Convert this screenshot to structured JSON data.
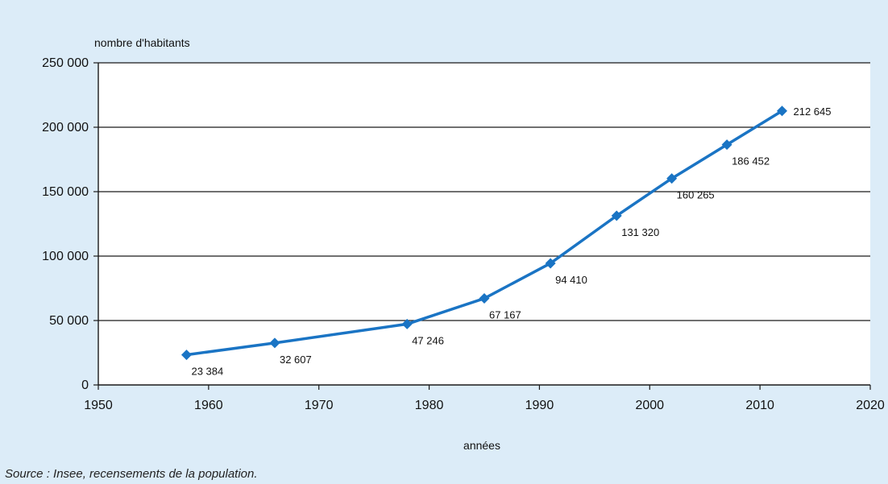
{
  "chart_data": {
    "type": "line",
    "title": "",
    "ylabel": "nombre d'habitants",
    "xlabel": "années",
    "xlim": [
      1950,
      2020
    ],
    "ylim": [
      0,
      250000
    ],
    "x_ticks": [
      1950,
      1960,
      1970,
      1980,
      1990,
      2000,
      2010,
      2020
    ],
    "x_tick_labels": [
      "1950",
      "1960",
      "1970",
      "1980",
      "1990",
      "2000",
      "2010",
      "2020"
    ],
    "y_ticks": [
      0,
      50000,
      100000,
      150000,
      200000,
      250000
    ],
    "y_tick_labels": [
      "0",
      "50 000",
      "100 000",
      "150 000",
      "200 000",
      "250 000"
    ],
    "grid": "horizontal",
    "series": [
      {
        "x": [
          1958,
          1966,
          1978,
          1985,
          1991,
          1997,
          2002,
          2007,
          2012
        ],
        "values": [
          23384,
          32607,
          47246,
          67167,
          94410,
          131320,
          160265,
          186452,
          212645
        ],
        "labels": [
          "23 384",
          "32 607",
          "47 246",
          "67 167",
          "94 410",
          "131 320",
          "160 265",
          "186 452",
          "212 645"
        ],
        "color": "#1a74c4",
        "marker": "diamond"
      }
    ]
  },
  "source": "Source : Insee, recensements de la population."
}
